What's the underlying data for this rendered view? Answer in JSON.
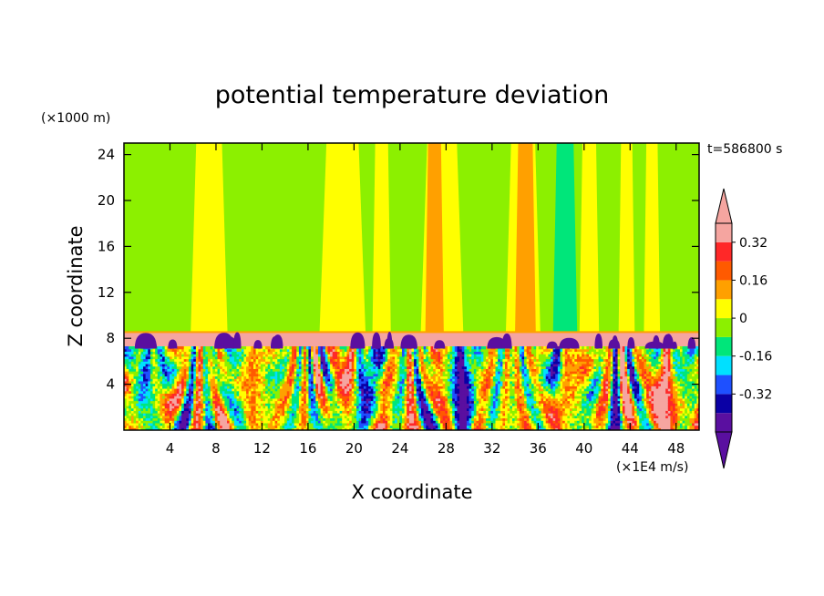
{
  "chart_data": {
    "type": "heatmap",
    "title": "potential temperature deviation",
    "xlabel": "X coordinate",
    "ylabel": "Z coordinate",
    "x_unit": "(×1E4 m/s)",
    "y_unit": "(×1000 m)",
    "time_label": "t=586800 s",
    "xlim": [
      0,
      50
    ],
    "ylim": [
      0,
      25
    ],
    "x_ticks": [
      4,
      8,
      12,
      16,
      20,
      24,
      28,
      32,
      36,
      40,
      44,
      48
    ],
    "y_ticks": [
      4,
      8,
      12,
      16,
      20,
      24
    ],
    "colorbar": {
      "levels": [
        -0.48,
        -0.4,
        -0.32,
        -0.24,
        -0.16,
        -0.08,
        0,
        0.08,
        0.16,
        0.24,
        0.32,
        0.4
      ],
      "colors": [
        "#5a0fa0",
        "#0a00a5",
        "#1e50ff",
        "#00e0ff",
        "#00e67a",
        "#8cf000",
        "#ffff00",
        "#ffa000",
        "#ff5a00",
        "#ff2828",
        "#f5a5a0"
      ],
      "under_color": "#5a0fa0",
      "over_color": "#f5a5a0",
      "tick_labels": [
        "-0.32",
        "-0.16",
        "0",
        "0.16",
        "0.32"
      ],
      "tick_values": [
        -0.32,
        -0.16,
        0,
        0.16,
        0.32
      ]
    },
    "regions": {
      "upper_background_value": -0.04,
      "inversion_layer": {
        "z_bottom": 7.3,
        "z_top": 8.5,
        "value": 0.45
      },
      "boundary_layer_top": 7.3,
      "upper_streaks": [
        {
          "x": [
            5.8,
            9.0
          ],
          "value": 0.04
        },
        {
          "x": [
            17.0,
            21.0
          ],
          "value": 0.04
        },
        {
          "x": [
            21.6,
            23.2
          ],
          "value": 0.04
        },
        {
          "x": [
            25.8,
            29.5
          ],
          "value": 0.04
        },
        {
          "x": [
            26.2,
            27.8
          ],
          "value": 0.12
        },
        {
          "x": [
            33.2,
            36.2
          ],
          "value": 0.04
        },
        {
          "x": [
            34.0,
            35.8
          ],
          "value": 0.12
        },
        {
          "x": [
            37.3,
            39.4
          ],
          "value": -0.12
        },
        {
          "x": [
            39.6,
            41.3
          ],
          "value": 0.04
        },
        {
          "x": [
            43.0,
            44.4
          ],
          "value": 0.04
        },
        {
          "x": [
            45.2,
            46.6
          ],
          "value": 0.04
        }
      ]
    }
  }
}
